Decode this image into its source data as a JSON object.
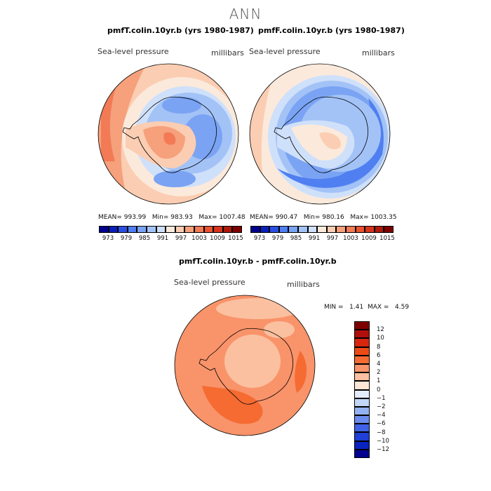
{
  "figure": {
    "title": "ANN"
  },
  "panels": [
    {
      "title": "pmfT.colin.10yr.b (yrs 1980-1987)",
      "variable": "Sea-level pressure",
      "units": "millibars",
      "mean_label": "MEAN=",
      "mean": "993.99",
      "min_label": "Min=",
      "min": "983.93",
      "max_label": "Max=",
      "max": "1007.48"
    },
    {
      "title": "pmfF.colin.10yr.b (yrs 1980-1987)",
      "variable": "Sea-level pressure",
      "units": "millibars",
      "mean_label": "MEAN=",
      "mean": "990.47",
      "min_label": "Min=",
      "min": "980.16",
      "max_label": "Max=",
      "max": "1003.35"
    }
  ],
  "diff_panel": {
    "title": "pmfT.colin.10yr.b - pmfF.colin.10yr.b",
    "variable": "Sea-level pressure",
    "units": "millibars",
    "min_label": "MIN =",
    "min": "1.41",
    "max_label": "MAX =",
    "max": "4.59"
  },
  "legend_abs": {
    "colors": [
      "#00008c",
      "#0a1fb8",
      "#2a4fe0",
      "#4f7ff0",
      "#7aa3f3",
      "#a3c3f7",
      "#cfe0fa",
      "#fbeadb",
      "#fbcdb2",
      "#f6a07c",
      "#f27a55",
      "#ea5230",
      "#d6341c",
      "#ad1a0c",
      "#7f0000"
    ],
    "ticks": [
      "973",
      "979",
      "985",
      "991",
      "997",
      "1003",
      "1009",
      "1015"
    ]
  },
  "legend_diff": {
    "colors": [
      "#7f0000",
      "#b00f0c",
      "#d8260f",
      "#ee4a18",
      "#f56b32",
      "#f9936a",
      "#fbc0a0",
      "#fde6d5",
      "#e3ecfa",
      "#c2d6f7",
      "#93b2f2",
      "#6a8cee",
      "#3f62e6",
      "#1f3fd8",
      "#0a22c0",
      "#000090"
    ],
    "ticks": [
      "12",
      "10",
      "8",
      "6",
      "4",
      "2",
      "1",
      "0",
      "−1",
      "−2",
      "−4",
      "−6",
      "−8",
      "−10",
      "−12"
    ]
  },
  "chart_data": {
    "type": "map",
    "projection": "south polar stereographic",
    "panels": [
      {
        "name": "pmfT.colin.10yr.b (yrs 1980-1987)",
        "mean": 993.99,
        "min": 983.93,
        "max": 1007.48,
        "units": "millibars"
      },
      {
        "name": "pmfF.colin.10yr.b (yrs 1980-1987)",
        "mean": 990.47,
        "min": 980.16,
        "max": 1003.35,
        "units": "millibars"
      },
      {
        "name": "pmfT.colin.10yr.b - pmfF.colin.10yr.b",
        "min": 1.41,
        "max": 4.59,
        "units": "millibars"
      }
    ],
    "contour_levels_abs": [
      973,
      976,
      979,
      982,
      985,
      988,
      991,
      994,
      997,
      1000,
      1003,
      1006,
      1009,
      1012,
      1015
    ],
    "contour_levels_diff": [
      -12,
      -10,
      -8,
      -6,
      -4,
      -2,
      -1,
      0,
      1,
      2,
      4,
      6,
      8,
      10,
      12
    ]
  }
}
